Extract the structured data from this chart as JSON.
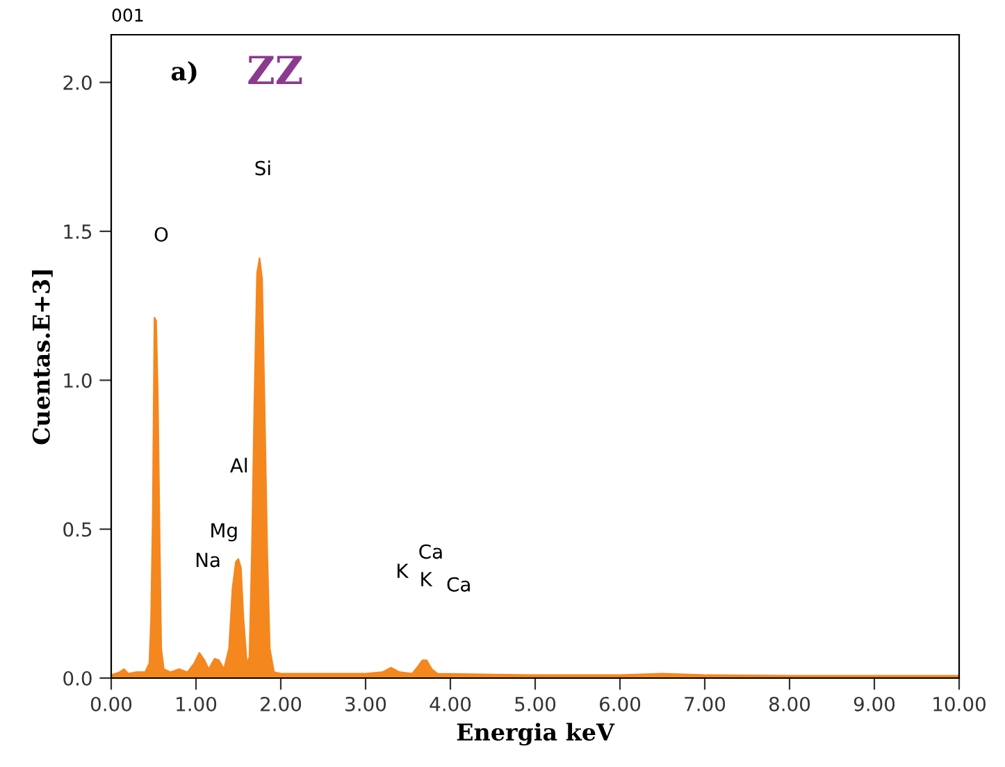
{
  "chart_data": {
    "type": "area",
    "xlabel": "Energia keV",
    "ylabel": "Cuentas.E+3]",
    "xlim": [
      0,
      10
    ],
    "ylim": [
      0,
      2.16
    ],
    "xticks": [
      {
        "value": 0,
        "label": "0.00"
      },
      {
        "value": 1,
        "label": "1.00"
      },
      {
        "value": 2,
        "label": "2.00"
      },
      {
        "value": 3,
        "label": "3.00"
      },
      {
        "value": 4,
        "label": "4.00"
      },
      {
        "value": 5,
        "label": "5.00"
      },
      {
        "value": 6,
        "label": "6.00"
      },
      {
        "value": 7,
        "label": "7.00"
      },
      {
        "value": 8,
        "label": "8.00"
      },
      {
        "value": 9,
        "label": "9.00"
      },
      {
        "value": 10,
        "label": "10.00"
      }
    ],
    "yticks": [
      {
        "value": 0,
        "label": "0.0"
      },
      {
        "value": 0.5,
        "label": "0.5"
      },
      {
        "value": 1,
        "label": "1.0"
      },
      {
        "value": 1.5,
        "label": "1.5"
      },
      {
        "value": 2,
        "label": "2.0"
      }
    ],
    "grid": false,
    "legend": false,
    "series": [
      {
        "color": "#f5871f",
        "x": [
          0.0,
          0.1,
          0.15,
          0.2,
          0.3,
          0.4,
          0.45,
          0.47,
          0.49,
          0.51,
          0.53,
          0.55,
          0.57,
          0.59,
          0.62,
          0.7,
          0.8,
          0.9,
          0.98,
          1.04,
          1.1,
          1.15,
          1.22,
          1.27,
          1.33,
          1.39,
          1.43,
          1.47,
          1.5,
          1.53,
          1.56,
          1.6,
          1.63,
          1.66,
          1.69,
          1.72,
          1.75,
          1.78,
          1.81,
          1.84,
          1.87,
          1.92,
          2.0,
          2.5,
          3.0,
          3.2,
          3.3,
          3.4,
          3.55,
          3.62,
          3.67,
          3.72,
          3.78,
          3.85,
          4.5,
          5.0,
          6.0,
          6.5,
          7.0,
          8.0,
          9.0,
          10.0
        ],
        "values": [
          0.01,
          0.02,
          0.03,
          0.015,
          0.02,
          0.02,
          0.05,
          0.2,
          0.55,
          1.21,
          1.2,
          0.95,
          0.5,
          0.1,
          0.03,
          0.02,
          0.03,
          0.02,
          0.05,
          0.085,
          0.06,
          0.03,
          0.065,
          0.06,
          0.03,
          0.1,
          0.3,
          0.39,
          0.4,
          0.37,
          0.2,
          0.05,
          0.07,
          0.44,
          0.95,
          1.36,
          1.41,
          1.34,
          0.9,
          0.43,
          0.1,
          0.02,
          0.015,
          0.015,
          0.015,
          0.02,
          0.035,
          0.02,
          0.015,
          0.04,
          0.06,
          0.06,
          0.03,
          0.015,
          0.012,
          0.01,
          0.01,
          0.015,
          0.01,
          0.008,
          0.008,
          0.008
        ]
      }
    ],
    "annotations": [
      "001",
      "a)",
      "ZZ",
      "O",
      "Si",
      "Al",
      "Mg",
      "Na",
      "K",
      "K",
      "Ca",
      "Ca"
    ]
  }
}
